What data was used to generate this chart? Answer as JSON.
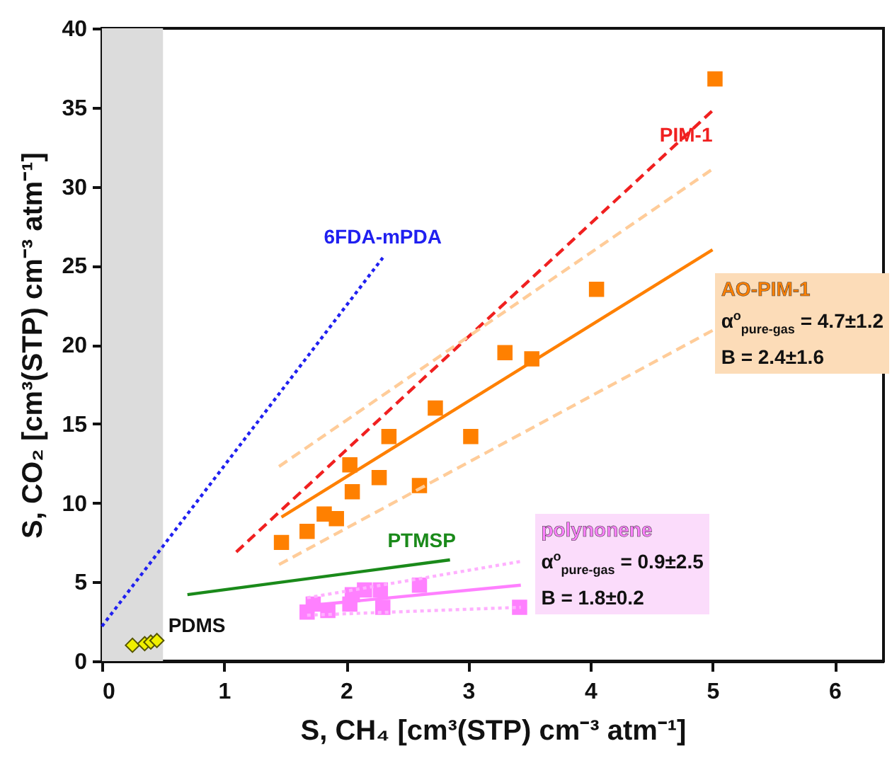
{
  "chart_data": {
    "type": "scatter",
    "xlabel": "S, CH₄ [cm³(STP) cm⁻³ atm⁻¹]",
    "ylabel": "S, CO₂ [cm³(STP) cm⁻³ atm⁻¹]",
    "xlim": [
      0,
      6.4
    ],
    "xticks": [
      0,
      1,
      2,
      3,
      4,
      5,
      6
    ],
    "ylim": [
      0,
      40
    ],
    "yticks": [
      0,
      5,
      10,
      15,
      20,
      25,
      30,
      35,
      40
    ],
    "grid": false,
    "bands": [
      {
        "axis": "x",
        "from": 0,
        "to": 0.5,
        "color": "#dcdcdc"
      }
    ],
    "annotations": [
      "α$^{o}$$_{pure-gas}$ = 4.7±1.2",
      "B = 2.4±1.6",
      "α$^{o}$$_{pure-gas}$ = 0.9±2.5",
      "B = 1.8±0.2"
    ],
    "series": [
      {
        "name": "6FDA-mPDA",
        "type": "line",
        "line_style": "dotted",
        "color": "#2020f0",
        "x": [
          0,
          2.3
        ],
        "values": [
          2.2,
          25.5
        ]
      },
      {
        "name": "PIM-1",
        "type": "line",
        "line_style": "dashed",
        "color": "#f02020",
        "x": [
          1.1,
          5.0
        ],
        "values": [
          6.9,
          34.8
        ]
      },
      {
        "name": "PTMSP",
        "type": "line",
        "line_style": "solid",
        "color": "#1a8a1a",
        "x": [
          0.7,
          2.85
        ],
        "values": [
          4.2,
          6.4
        ]
      },
      {
        "name": "PDMS",
        "marker": "diamond",
        "color": "#f0f000",
        "x": [
          0.25,
          0.35,
          0.4,
          0.45
        ],
        "values": [
          1.0,
          1.1,
          1.2,
          1.3
        ]
      },
      {
        "name": "AO-PIM-1",
        "marker": "square",
        "color": "#ff8000",
        "x": [
          1.47,
          1.68,
          1.82,
          1.92,
          2.03,
          2.05,
          2.27,
          2.35,
          2.6,
          2.73,
          3.02,
          3.3,
          3.52,
          4.05,
          5.02
        ],
        "values": [
          7.5,
          8.2,
          9.3,
          9.0,
          12.4,
          10.7,
          11.6,
          14.2,
          11.1,
          16.0,
          14.2,
          19.5,
          19.1,
          23.5,
          36.8
        ]
      },
      {
        "type": "line",
        "line_style": "solid",
        "color": "#ff8000",
        "x": [
          1.47,
          5.0
        ],
        "values": [
          9.1,
          26.0
        ]
      },
      {
        "type": "line",
        "line_style": "dashed",
        "color": "#ffcc99",
        "x": [
          1.45,
          5.0
        ],
        "values": [
          12.3,
          31.1
        ]
      },
      {
        "type": "line",
        "line_style": "dashed",
        "color": "#ffcc99",
        "x": [
          1.45,
          5.0
        ],
        "values": [
          6.1,
          20.9
        ]
      },
      {
        "name": "polynonene",
        "marker": "square",
        "color": "#ff80ff",
        "x": [
          1.68,
          1.73,
          1.85,
          2.03,
          2.05,
          2.15,
          2.28,
          2.3,
          2.6,
          3.42
        ],
        "values": [
          3.1,
          3.6,
          3.2,
          3.6,
          4.2,
          4.5,
          4.5,
          3.4,
          4.8,
          3.4
        ]
      },
      {
        "type": "line",
        "line_style": "solid",
        "color": "#ff80ff",
        "x": [
          1.68,
          3.43
        ],
        "values": [
          3.5,
          4.8
        ]
      },
      {
        "type": "line",
        "line_style": "dotted",
        "color": "#ffb0ff",
        "x": [
          1.68,
          3.43
        ],
        "values": [
          4.0,
          6.3
        ]
      },
      {
        "type": "line",
        "line_style": "dotted",
        "color": "#ffb0ff",
        "x": [
          1.68,
          3.43
        ],
        "values": [
          2.9,
          3.4
        ]
      }
    ]
  }
}
